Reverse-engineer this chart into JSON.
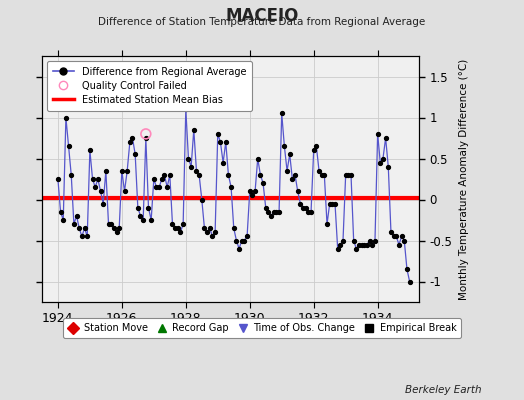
{
  "title": "MACEIO",
  "subtitle": "Difference of Station Temperature Data from Regional Average",
  "ylabel": "Monthly Temperature Anomaly Difference (°C)",
  "xlabel_bottom": "Berkeley Earth",
  "bias": 0.02,
  "bias_color": "#ff0000",
  "line_color": "#5555cc",
  "marker_color": "#000000",
  "background_color": "#e0e0e0",
  "plot_bg_color": "#f0f0f0",
  "ylim": [
    -1.25,
    1.75
  ],
  "yticks": [
    -1.0,
    -0.5,
    0.0,
    0.5,
    1.0,
    1.5
  ],
  "xlim": [
    1923.5,
    1935.3
  ],
  "xticks": [
    1924,
    1926,
    1928,
    1930,
    1932,
    1934
  ],
  "x": [
    1924.0,
    1924.083,
    1924.167,
    1924.25,
    1924.333,
    1924.417,
    1924.5,
    1924.583,
    1924.667,
    1924.75,
    1924.833,
    1924.917,
    1925.0,
    1925.083,
    1925.167,
    1925.25,
    1925.333,
    1925.417,
    1925.5,
    1925.583,
    1925.667,
    1925.75,
    1925.833,
    1925.917,
    1926.0,
    1926.083,
    1926.167,
    1926.25,
    1926.333,
    1926.417,
    1926.5,
    1926.583,
    1926.667,
    1926.75,
    1926.833,
    1926.917,
    1927.0,
    1927.083,
    1927.167,
    1927.25,
    1927.333,
    1927.417,
    1927.5,
    1927.583,
    1927.667,
    1927.75,
    1927.833,
    1927.917,
    1928.0,
    1928.083,
    1928.167,
    1928.25,
    1928.333,
    1928.417,
    1928.5,
    1928.583,
    1928.667,
    1928.75,
    1928.833,
    1928.917,
    1929.0,
    1929.083,
    1929.167,
    1929.25,
    1929.333,
    1929.417,
    1929.5,
    1929.583,
    1929.667,
    1929.75,
    1929.833,
    1929.917,
    1930.0,
    1930.083,
    1930.167,
    1930.25,
    1930.333,
    1930.417,
    1930.5,
    1930.583,
    1930.667,
    1930.75,
    1930.833,
    1930.917,
    1931.0,
    1931.083,
    1931.167,
    1931.25,
    1931.333,
    1931.417,
    1931.5,
    1931.583,
    1931.667,
    1931.75,
    1931.833,
    1931.917,
    1932.0,
    1932.083,
    1932.167,
    1932.25,
    1932.333,
    1932.417,
    1932.5,
    1932.583,
    1932.667,
    1932.75,
    1932.833,
    1932.917,
    1933.0,
    1933.083,
    1933.167,
    1933.25,
    1933.333,
    1933.417,
    1933.5,
    1933.583,
    1933.667,
    1933.75,
    1933.833,
    1933.917,
    1934.0,
    1934.083,
    1934.167,
    1934.25,
    1934.333,
    1934.417,
    1934.5,
    1934.583,
    1934.667,
    1934.75,
    1934.833,
    1934.917,
    1935.0
  ],
  "y": [
    0.25,
    -0.15,
    -0.25,
    1.0,
    0.65,
    0.3,
    -0.3,
    -0.2,
    -0.35,
    -0.45,
    -0.35,
    -0.45,
    0.6,
    0.25,
    0.15,
    0.25,
    0.1,
    -0.05,
    0.35,
    -0.3,
    -0.3,
    -0.35,
    -0.4,
    -0.35,
    0.35,
    0.1,
    0.35,
    0.7,
    0.75,
    0.55,
    -0.1,
    -0.2,
    -0.25,
    0.75,
    -0.1,
    -0.25,
    0.25,
    0.15,
    0.15,
    0.25,
    0.3,
    0.15,
    0.3,
    -0.3,
    -0.35,
    -0.35,
    -0.4,
    -0.3,
    1.1,
    0.5,
    0.4,
    0.85,
    0.35,
    0.3,
    0.0,
    -0.35,
    -0.4,
    -0.35,
    -0.45,
    -0.4,
    0.8,
    0.7,
    0.45,
    0.7,
    0.3,
    0.15,
    -0.35,
    -0.5,
    -0.6,
    -0.5,
    -0.5,
    -0.45,
    0.1,
    0.05,
    0.1,
    0.5,
    0.3,
    0.2,
    -0.1,
    -0.15,
    -0.2,
    -0.15,
    -0.15,
    -0.15,
    1.05,
    0.65,
    0.35,
    0.55,
    0.25,
    0.3,
    0.1,
    -0.05,
    -0.1,
    -0.1,
    -0.15,
    -0.15,
    0.6,
    0.65,
    0.35,
    0.3,
    0.3,
    -0.3,
    -0.05,
    -0.05,
    -0.05,
    -0.6,
    -0.55,
    -0.5,
    0.3,
    0.3,
    0.3,
    -0.5,
    -0.6,
    -0.55,
    -0.55,
    -0.55,
    -0.55,
    -0.5,
    -0.55,
    -0.5,
    0.8,
    0.45,
    0.5,
    0.75,
    0.4,
    -0.4,
    -0.45,
    -0.45,
    -0.55,
    -0.45,
    -0.5,
    -0.85,
    -1.0
  ],
  "qc_fail_x": [
    1926.75
  ],
  "qc_fail_y": [
    0.8
  ]
}
